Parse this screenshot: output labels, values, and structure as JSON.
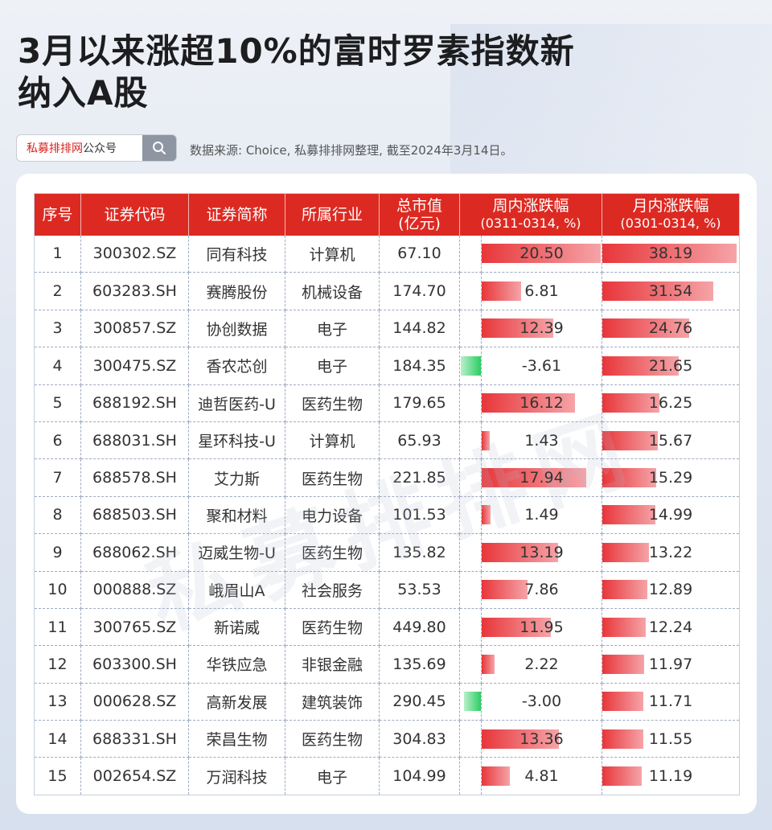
{
  "title_line1": "3月以来涨超10%的富时罗素指数新",
  "title_line2": "纳入A股",
  "search": {
    "brand_red": "私募排排网",
    "brand_rest": "公众号"
  },
  "source": "数据来源: Choice, 私募排排网整理, 截至2024年3月14日。",
  "watermark": "私募排排网",
  "colors": {
    "header": "#dc2a22",
    "positive": "#e8363a",
    "negative": "#2ccd63"
  },
  "headers": {
    "no": "序号",
    "code": "证券代码",
    "name": "证券简称",
    "industry": "所属行业",
    "mcap_line1": "总市值",
    "mcap_line2": "(亿元)",
    "week_line1": "周内涨跌幅",
    "week_line2": "(0311-0314, %)",
    "month_line1": "月内涨跌幅",
    "month_line2": "(0301-0314, %)"
  },
  "rows": [
    {
      "no": "1",
      "code": "300302.SZ",
      "name": "同有科技",
      "industry": "计算机",
      "mcap": "67.10",
      "week": "20.50",
      "month": "38.19"
    },
    {
      "no": "2",
      "code": "603283.SH",
      "name": "赛腾股份",
      "industry": "机械设备",
      "mcap": "174.70",
      "week": "6.81",
      "month": "31.54"
    },
    {
      "no": "3",
      "code": "300857.SZ",
      "name": "协创数据",
      "industry": "电子",
      "mcap": "144.82",
      "week": "12.39",
      "month": "24.76"
    },
    {
      "no": "4",
      "code": "300475.SZ",
      "name": "香农芯创",
      "industry": "电子",
      "mcap": "184.35",
      "week": "-3.61",
      "month": "21.65"
    },
    {
      "no": "5",
      "code": "688192.SH",
      "name": "迪哲医药-U",
      "industry": "医药生物",
      "mcap": "179.65",
      "week": "16.12",
      "month": "16.25"
    },
    {
      "no": "6",
      "code": "688031.SH",
      "name": "星环科技-U",
      "industry": "计算机",
      "mcap": "65.93",
      "week": "1.43",
      "month": "15.67"
    },
    {
      "no": "7",
      "code": "688578.SH",
      "name": "艾力斯",
      "industry": "医药生物",
      "mcap": "221.85",
      "week": "17.94",
      "month": "15.29"
    },
    {
      "no": "8",
      "code": "688503.SH",
      "name": "聚和材料",
      "industry": "电力设备",
      "mcap": "101.53",
      "week": "1.49",
      "month": "14.99"
    },
    {
      "no": "9",
      "code": "688062.SH",
      "name": "迈威生物-U",
      "industry": "医药生物",
      "mcap": "135.82",
      "week": "13.19",
      "month": "13.22"
    },
    {
      "no": "10",
      "code": "000888.SZ",
      "name": "峨眉山A",
      "industry": "社会服务",
      "mcap": "53.53",
      "week": "7.86",
      "month": "12.89"
    },
    {
      "no": "11",
      "code": "300765.SZ",
      "name": "新诺威",
      "industry": "医药生物",
      "mcap": "449.80",
      "week": "11.95",
      "month": "12.24"
    },
    {
      "no": "12",
      "code": "603300.SH",
      "name": "华铁应急",
      "industry": "非银金融",
      "mcap": "135.69",
      "week": "2.22",
      "month": "11.97"
    },
    {
      "no": "13",
      "code": "000628.SZ",
      "name": "高新发展",
      "industry": "建筑装饰",
      "mcap": "290.45",
      "week": "-3.00",
      "month": "11.71"
    },
    {
      "no": "14",
      "code": "688331.SH",
      "name": "荣昌生物",
      "industry": "医药生物",
      "mcap": "304.83",
      "week": "13.36",
      "month": "11.55"
    },
    {
      "no": "15",
      "code": "002654.SZ",
      "name": "万润科技",
      "industry": "电子",
      "mcap": "104.99",
      "week": "4.81",
      "month": "11.19"
    }
  ]
}
